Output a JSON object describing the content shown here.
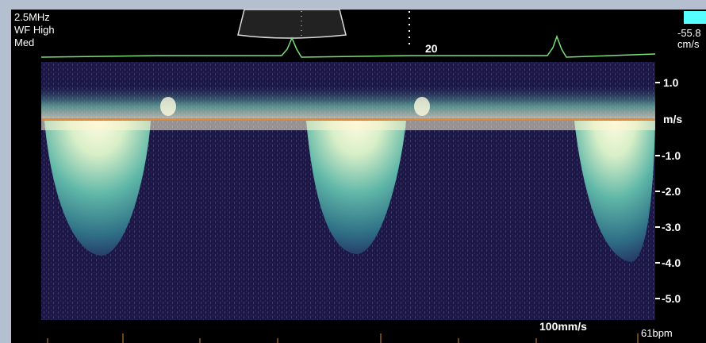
{
  "settings": {
    "frequency": "2.5MHz",
    "wall_filter": "WF High",
    "level": "Med"
  },
  "depth_marker": "20",
  "color_scale": {
    "value": "-55.8",
    "unit": "cm/s"
  },
  "velocity_scale": {
    "labels": [
      "1.0",
      "m/s",
      "-1.0",
      "-2.0",
      "-3.0",
      "-4.0",
      "-5.0"
    ]
  },
  "sweep_speed": "100mm/s",
  "heart_rate": "61bpm"
}
